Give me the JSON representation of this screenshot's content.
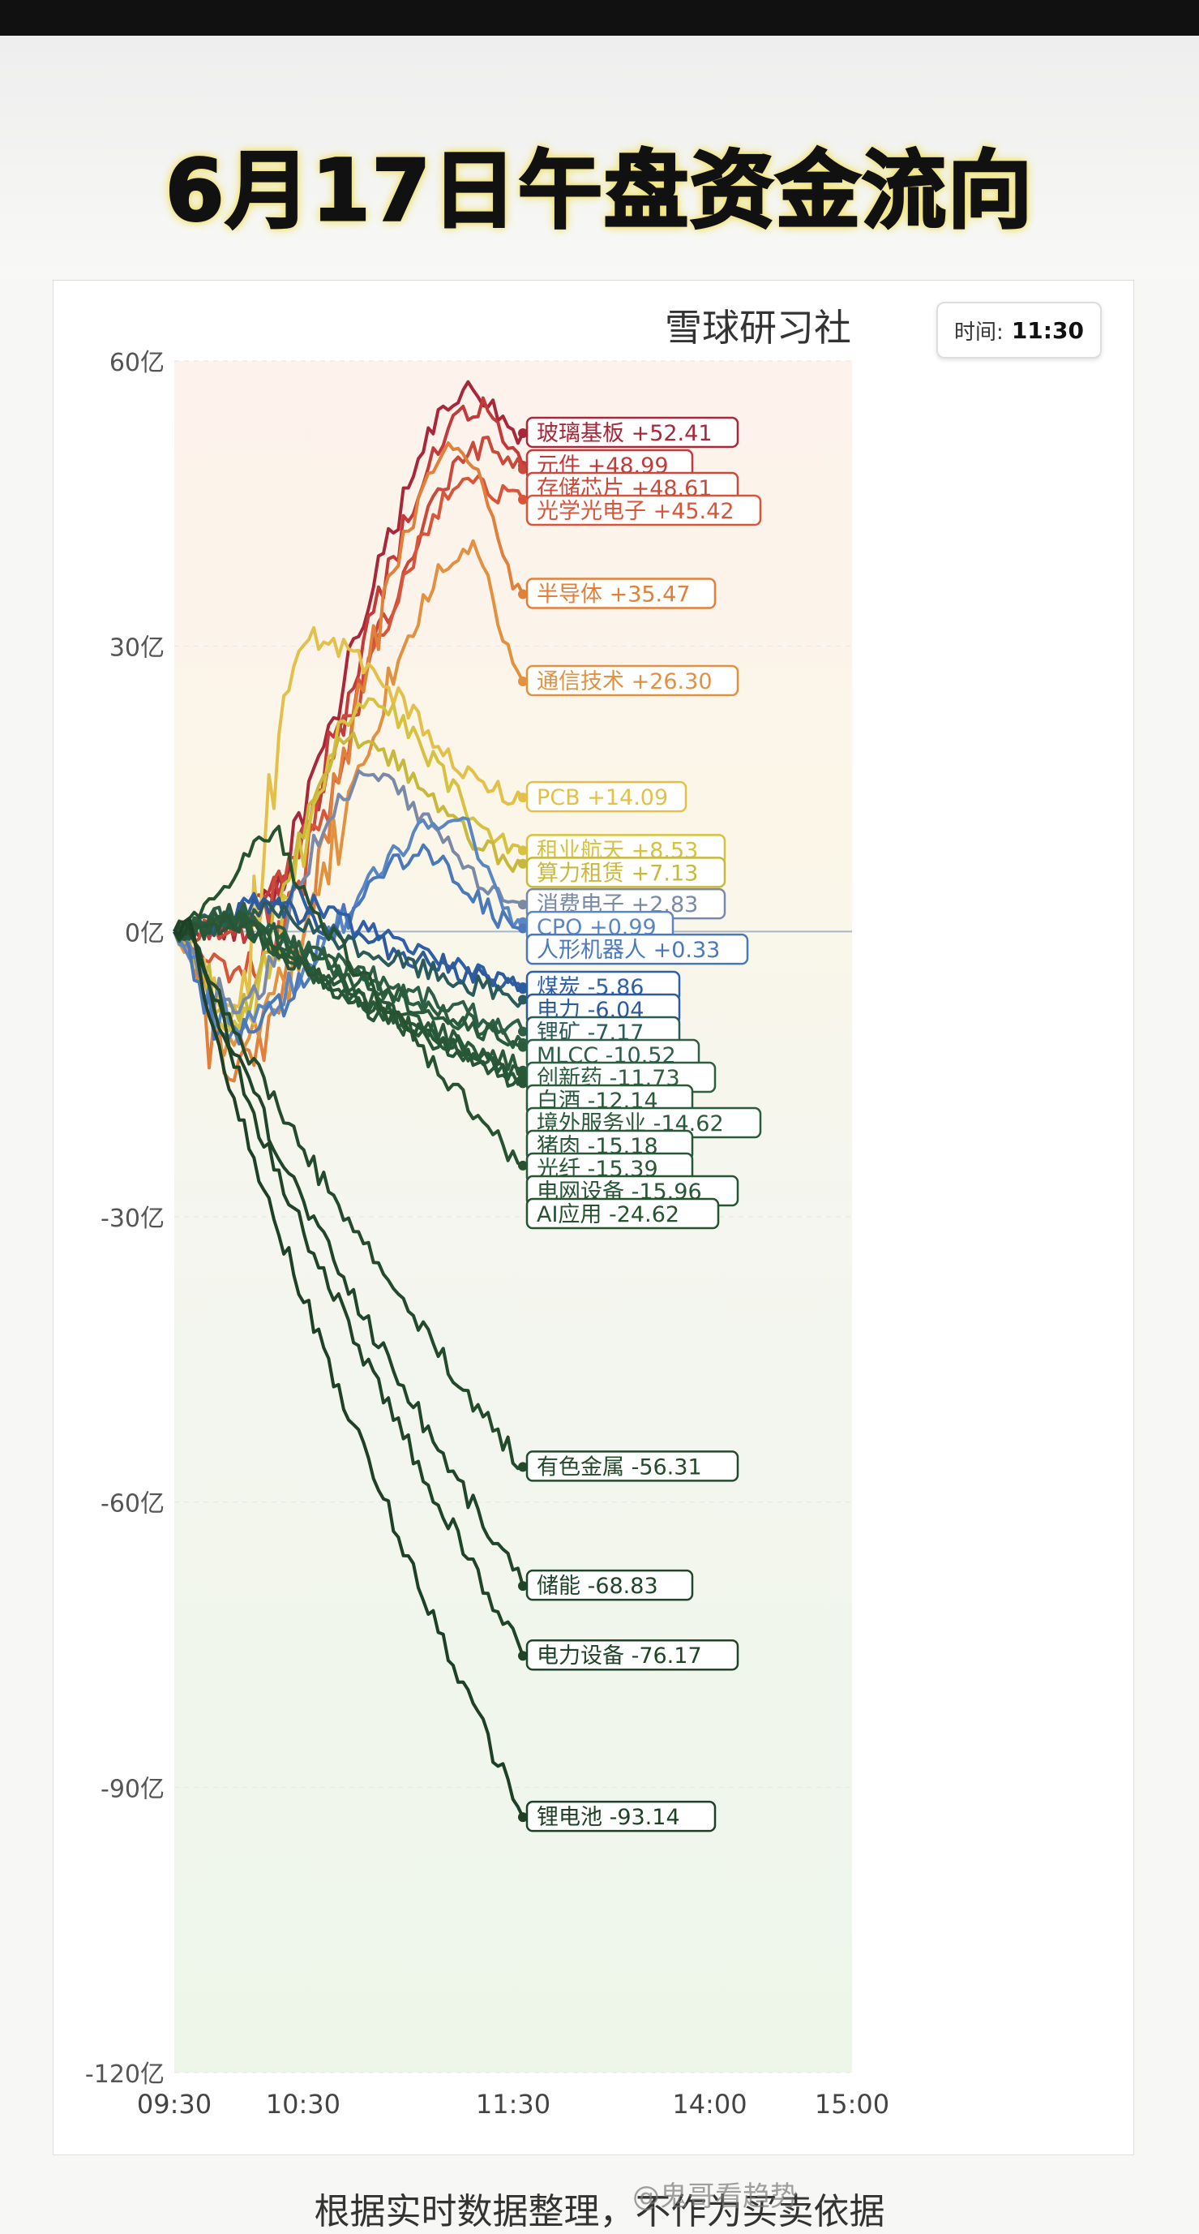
{
  "title": "6月17日午盘资金流向",
  "brand": "雪球研习社",
  "time_label": "时间:",
  "time_value": "11:30",
  "footer": "根据实时数据整理，不作为买卖依据",
  "watermark": "@鬼哥看趋势",
  "chart_data": {
    "type": "line",
    "title": "6月17日午盘资金流向",
    "xlabel": "",
    "ylabel": "",
    "x_ticks": [
      "09:30",
      "10:30",
      "11:30",
      "14:00",
      "15:00"
    ],
    "y_ticks": [
      "60亿",
      "30亿",
      "0亿",
      "-30亿",
      "-60亿",
      "-90亿",
      "-120亿"
    ],
    "ylim": [
      -120,
      60
    ],
    "unit": "亿",
    "grid": true,
    "series": [
      {
        "name": "玻璃基板",
        "value": 52.41,
        "value_text": "+52.41",
        "color": "#a8283a",
        "peak": 57,
        "peak_t": 0.85,
        "trough": 0
      },
      {
        "name": "元件",
        "value": 48.99,
        "value_text": "+48.99",
        "color": "#c23a3a",
        "peak": 55,
        "peak_t": 0.88,
        "trough": 0
      },
      {
        "name": "存储芯片",
        "value": 48.61,
        "value_text": "+48.61",
        "color": "#c94a3a",
        "peak": 51,
        "peak_t": 0.9,
        "trough": 0
      },
      {
        "name": "光学光电子",
        "value": 45.42,
        "value_text": "+45.42",
        "color": "#d8553a",
        "peak": 47,
        "peak_t": 0.85,
        "trough": -5
      },
      {
        "name": "半导体",
        "value": 35.47,
        "value_text": "+35.47",
        "color": "#e0803a",
        "peak": 51,
        "peak_t": 0.82,
        "trough": -15
      },
      {
        "name": "通信技术",
        "value": 26.3,
        "value_text": "+26.30",
        "color": "#e2913f",
        "peak": 40,
        "peak_t": 0.85,
        "trough": -12
      },
      {
        "name": "PCB",
        "value": 14.09,
        "value_text": "+14.09",
        "color": "#e3c04a",
        "peak": 31,
        "peak_t": 0.38,
        "trough": -8
      },
      {
        "name": "租业航天",
        "value": 8.53,
        "value_text": "+8.53",
        "color": "#d6c23f",
        "peak": 24,
        "peak_t": 0.55,
        "trough": -10
      },
      {
        "name": "算力租赁",
        "value": 7.13,
        "value_text": "+7.13",
        "color": "#c8b83c",
        "peak": 20,
        "peak_t": 0.5,
        "trough": -9
      },
      {
        "name": "消费电子",
        "value": 2.83,
        "value_text": "+2.83",
        "color": "#7a8aa6",
        "peak": 16,
        "peak_t": 0.55,
        "trough": -8
      },
      {
        "name": "CPO",
        "value": 0.99,
        "value_text": "+0.99",
        "color": "#5b86c4",
        "peak": 12,
        "peak_t": 0.8,
        "trough": -10
      },
      {
        "name": "人形机器人",
        "value": 0.33,
        "value_text": "+0.33",
        "color": "#4a78b8",
        "peak": 8,
        "peak_t": 0.7,
        "trough": -11
      },
      {
        "name": "煤炭",
        "value": -5.86,
        "value_text": "-5.86",
        "color": "#2f5fa8",
        "peak": 4,
        "peak_t": 0.35,
        "trough": -9
      },
      {
        "name": "电力",
        "value": -6.04,
        "value_text": "-6.04",
        "color": "#2d5b9c",
        "peak": 3,
        "peak_t": 0.3,
        "trough": -9
      },
      {
        "name": "锂矿",
        "value": -7.17,
        "value_text": "-7.17",
        "color": "#2a5a5a",
        "peak": 2,
        "peak_t": 0.3,
        "trough": -10
      },
      {
        "name": "MLCC",
        "value": -10.52,
        "value_text": "-10.52",
        "color": "#2d5e48",
        "peak": 2,
        "peak_t": 0.2,
        "trough": -12
      },
      {
        "name": "创新药",
        "value": -11.73,
        "value_text": "-11.73",
        "color": "#2c5e40",
        "peak": 2,
        "peak_t": 0.2,
        "trough": -13
      },
      {
        "name": "白酒",
        "value": -12.14,
        "value_text": "-12.14",
        "color": "#2a5a3c",
        "peak": 2,
        "peak_t": 0.2,
        "trough": -13
      },
      {
        "name": "境外服务业",
        "value": -14.62,
        "value_text": "-14.62",
        "color": "#2a5a3c",
        "peak": 1,
        "peak_t": 0.2,
        "trough": -15
      },
      {
        "name": "猪肉",
        "value": -15.18,
        "value_text": "-15.18",
        "color": "#285838",
        "peak": 1,
        "peak_t": 0.2,
        "trough": -16
      },
      {
        "name": "光纤",
        "value": -15.39,
        "value_text": "-15.39",
        "color": "#285838",
        "peak": 1,
        "peak_t": 0.2,
        "trough": -16
      },
      {
        "name": "电网设备",
        "value": -15.96,
        "value_text": "-15.96",
        "color": "#275535",
        "peak": 1,
        "peak_t": 0.2,
        "trough": -18
      },
      {
        "name": "AI应用",
        "value": -24.62,
        "value_text": "-24.62",
        "color": "#26522f",
        "peak": 10,
        "peak_t": 0.3,
        "trough": -25
      },
      {
        "name": "有色金属",
        "value": -56.31,
        "value_text": "-56.31",
        "color": "#234a2c",
        "peak": 1,
        "peak_t": 0.05,
        "trough": -56
      },
      {
        "name": "储能",
        "value": -68.83,
        "value_text": "-68.83",
        "color": "#21452a",
        "peak": 1,
        "peak_t": 0.05,
        "trough": -69
      },
      {
        "name": "电力设备",
        "value": -76.17,
        "value_text": "-76.17",
        "color": "#1f4428",
        "peak": 1,
        "peak_t": 0.05,
        "trough": -76
      },
      {
        "name": "锂电池",
        "value": -93.14,
        "value_text": "-93.14",
        "color": "#1d4026",
        "peak": 1,
        "peak_t": 0.05,
        "trough": -93
      }
    ]
  }
}
